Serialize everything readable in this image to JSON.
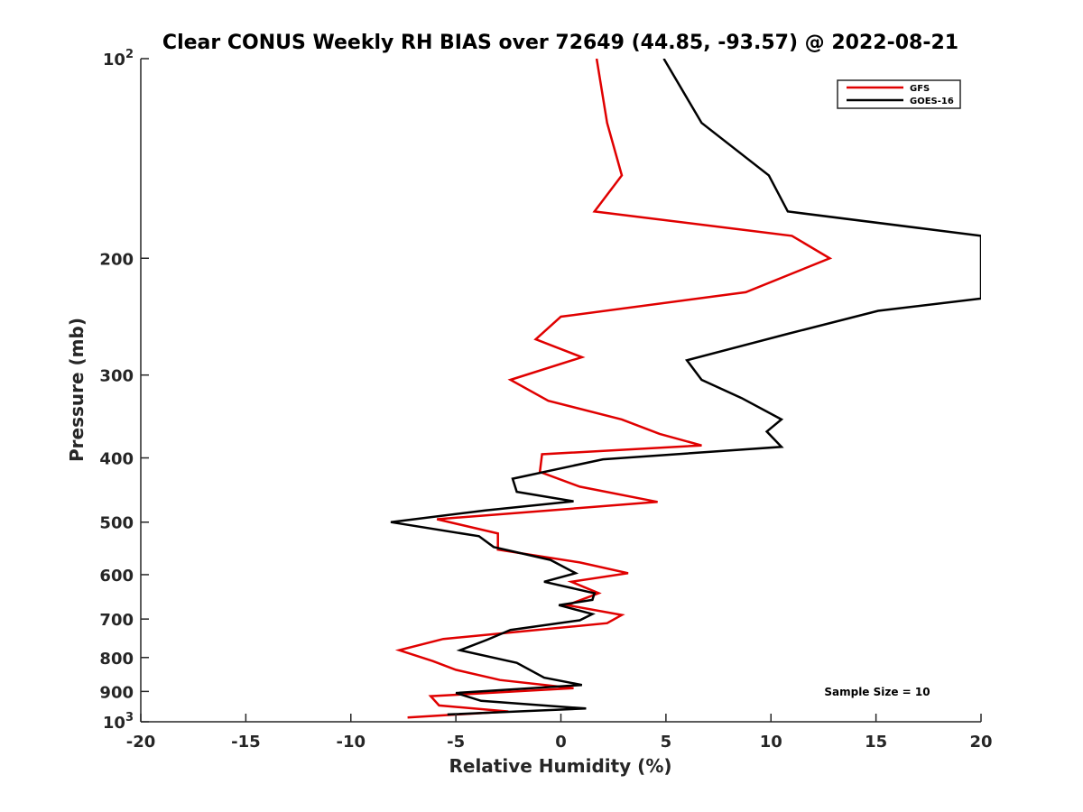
{
  "chart_data": {
    "type": "line",
    "title": "Clear CONUS Weekly RH BIAS over 72649 (44.85, -93.57) @ 2022-08-21",
    "xlabel": "Relative Humidity (%)",
    "ylabel": "Pressure (mb)",
    "xlim": [
      -20,
      20
    ],
    "ylim": [
      100,
      1000
    ],
    "y_scale": "log",
    "y_reversed": true,
    "grid": false,
    "legend_position": "top-right",
    "annotation": "Sample Size = 10",
    "x_ticks": [
      {
        "value": -20,
        "label": "-20"
      },
      {
        "value": -15,
        "label": "-15"
      },
      {
        "value": -10,
        "label": "-10"
      },
      {
        "value": -5,
        "label": "-5"
      },
      {
        "value": 0,
        "label": "0"
      },
      {
        "value": 5,
        "label": "5"
      },
      {
        "value": 10,
        "label": "10"
      },
      {
        "value": 15,
        "label": "15"
      },
      {
        "value": 20,
        "label": "20"
      }
    ],
    "y_ticks": [
      {
        "value": 100,
        "label": "10",
        "sup": "2"
      },
      {
        "value": 200,
        "label": "200",
        "sup": ""
      },
      {
        "value": 300,
        "label": "300",
        "sup": ""
      },
      {
        "value": 400,
        "label": "400",
        "sup": ""
      },
      {
        "value": 500,
        "label": "500",
        "sup": ""
      },
      {
        "value": 600,
        "label": "600",
        "sup": ""
      },
      {
        "value": 700,
        "label": "700",
        "sup": ""
      },
      {
        "value": 800,
        "label": "800",
        "sup": ""
      },
      {
        "value": 900,
        "label": "900",
        "sup": ""
      },
      {
        "value": 1000,
        "label": "10",
        "sup": "3"
      }
    ],
    "series": [
      {
        "name": "GFS",
        "color": "#e00000",
        "points": [
          [
            1.7,
            100
          ],
          [
            2.2,
            125
          ],
          [
            2.9,
            150
          ],
          [
            1.6,
            170
          ],
          [
            11,
            185
          ],
          [
            12.8,
            200
          ],
          [
            8.8,
            225
          ],
          [
            0,
            245
          ],
          [
            -1.2,
            265
          ],
          [
            1,
            282
          ],
          [
            -2.4,
            305
          ],
          [
            -0.6,
            328
          ],
          [
            2.9,
            350
          ],
          [
            4.7,
            368
          ],
          [
            6.7,
            383
          ],
          [
            -0.9,
            395
          ],
          [
            -1,
            420
          ],
          [
            0.9,
            442
          ],
          [
            4.6,
            466
          ],
          [
            -5.9,
            495
          ],
          [
            -3,
            520
          ],
          [
            -3,
            550
          ],
          [
            0.9,
            575
          ],
          [
            3.2,
            597
          ],
          [
            0.5,
            615
          ],
          [
            1.8,
            640
          ],
          [
            0.3,
            667
          ],
          [
            2.9,
            690
          ],
          [
            2.2,
            710
          ],
          [
            -5.6,
            750
          ],
          [
            -7.7,
            780
          ],
          [
            -6.1,
            810
          ],
          [
            -5,
            835
          ],
          [
            -2.9,
            865
          ],
          [
            0.6,
            890
          ],
          [
            -6.2,
            915
          ],
          [
            -5.8,
            945
          ],
          [
            -2.5,
            965
          ],
          [
            -7.3,
            985
          ]
        ]
      },
      {
        "name": "GOES-16",
        "color": "#000000",
        "points": [
          [
            4.9,
            100
          ],
          [
            6.7,
            125
          ],
          [
            9.9,
            150
          ],
          [
            10.8,
            170
          ],
          [
            20,
            185
          ],
          [
            20,
            230
          ],
          [
            15.1,
            240
          ],
          [
            10.8,
            260
          ],
          [
            6,
            285
          ],
          [
            6.7,
            305
          ],
          [
            8.6,
            325
          ],
          [
            10.5,
            350
          ],
          [
            9.8,
            365
          ],
          [
            10.5,
            385
          ],
          [
            2,
            402
          ],
          [
            -2.3,
            430
          ],
          [
            -2.1,
            450
          ],
          [
            0.6,
            465
          ],
          [
            -3.6,
            480
          ],
          [
            -8.1,
            500
          ],
          [
            -3.9,
            525
          ],
          [
            -3.2,
            545
          ],
          [
            -0.5,
            570
          ],
          [
            0.7,
            597
          ],
          [
            -0.8,
            615
          ],
          [
            1.6,
            640
          ],
          [
            1.5,
            655
          ],
          [
            -0.1,
            667
          ],
          [
            1.5,
            688
          ],
          [
            0.9,
            703
          ],
          [
            -2.4,
            727
          ],
          [
            -3.5,
            752
          ],
          [
            -4.8,
            780
          ],
          [
            -2.1,
            815
          ],
          [
            -0.8,
            858
          ],
          [
            1,
            880
          ],
          [
            -5,
            905
          ],
          [
            -3.8,
            930
          ],
          [
            1.2,
            955
          ],
          [
            -5.4,
            975
          ]
        ]
      }
    ]
  }
}
